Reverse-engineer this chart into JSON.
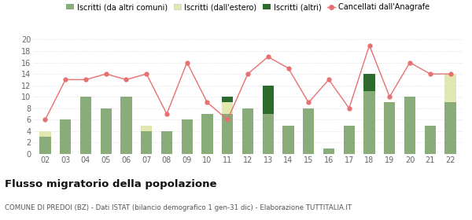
{
  "years": [
    "02",
    "03",
    "04",
    "05",
    "06",
    "07",
    "08",
    "09",
    "10",
    "11",
    "12",
    "13",
    "14",
    "15",
    "16",
    "17",
    "18",
    "19",
    "20",
    "21",
    "22"
  ],
  "iscritti_comuni": [
    3,
    6,
    10,
    8,
    10,
    4,
    4,
    6,
    7,
    7,
    8,
    7,
    5,
    8,
    1,
    5,
    11,
    9,
    10,
    5,
    9
  ],
  "iscritti_estero": [
    1,
    0,
    0,
    0,
    0,
    1,
    0,
    0,
    0,
    2,
    0,
    0,
    0,
    0,
    0,
    0,
    0,
    0,
    0,
    0,
    5
  ],
  "iscritti_altri": [
    0,
    0,
    0,
    0,
    0,
    0,
    0,
    0,
    0,
    1,
    0,
    5,
    0,
    0,
    0,
    0,
    3,
    0,
    0,
    0,
    0
  ],
  "cancellati": [
    6,
    13,
    13,
    14,
    13,
    14,
    7,
    16,
    9,
    6,
    14,
    17,
    15,
    9,
    13,
    8,
    19,
    10,
    16,
    14,
    14
  ],
  "color_comuni": "#8aab7a",
  "color_estero": "#e0e8b0",
  "color_altri": "#2d6a2d",
  "color_cancellati": "#e87070",
  "ylim": [
    0,
    20
  ],
  "yticks": [
    0,
    2,
    4,
    6,
    8,
    10,
    12,
    14,
    16,
    18,
    20
  ],
  "title": "Flusso migratorio della popolazione",
  "subtitle": "COMUNE DI PREDOI (BZ) - Dati ISTAT (bilancio demografico 1 gen-31 dic) - Elaborazione TUTTITALIA.IT",
  "legend_labels": [
    "Iscritti (da altri comuni)",
    "Iscritti (dall'estero)",
    "Iscritti (altri)",
    "Cancellati dall'Anagrafe"
  ],
  "bg_color": "#ffffff",
  "grid_color": "#d8d8d8"
}
